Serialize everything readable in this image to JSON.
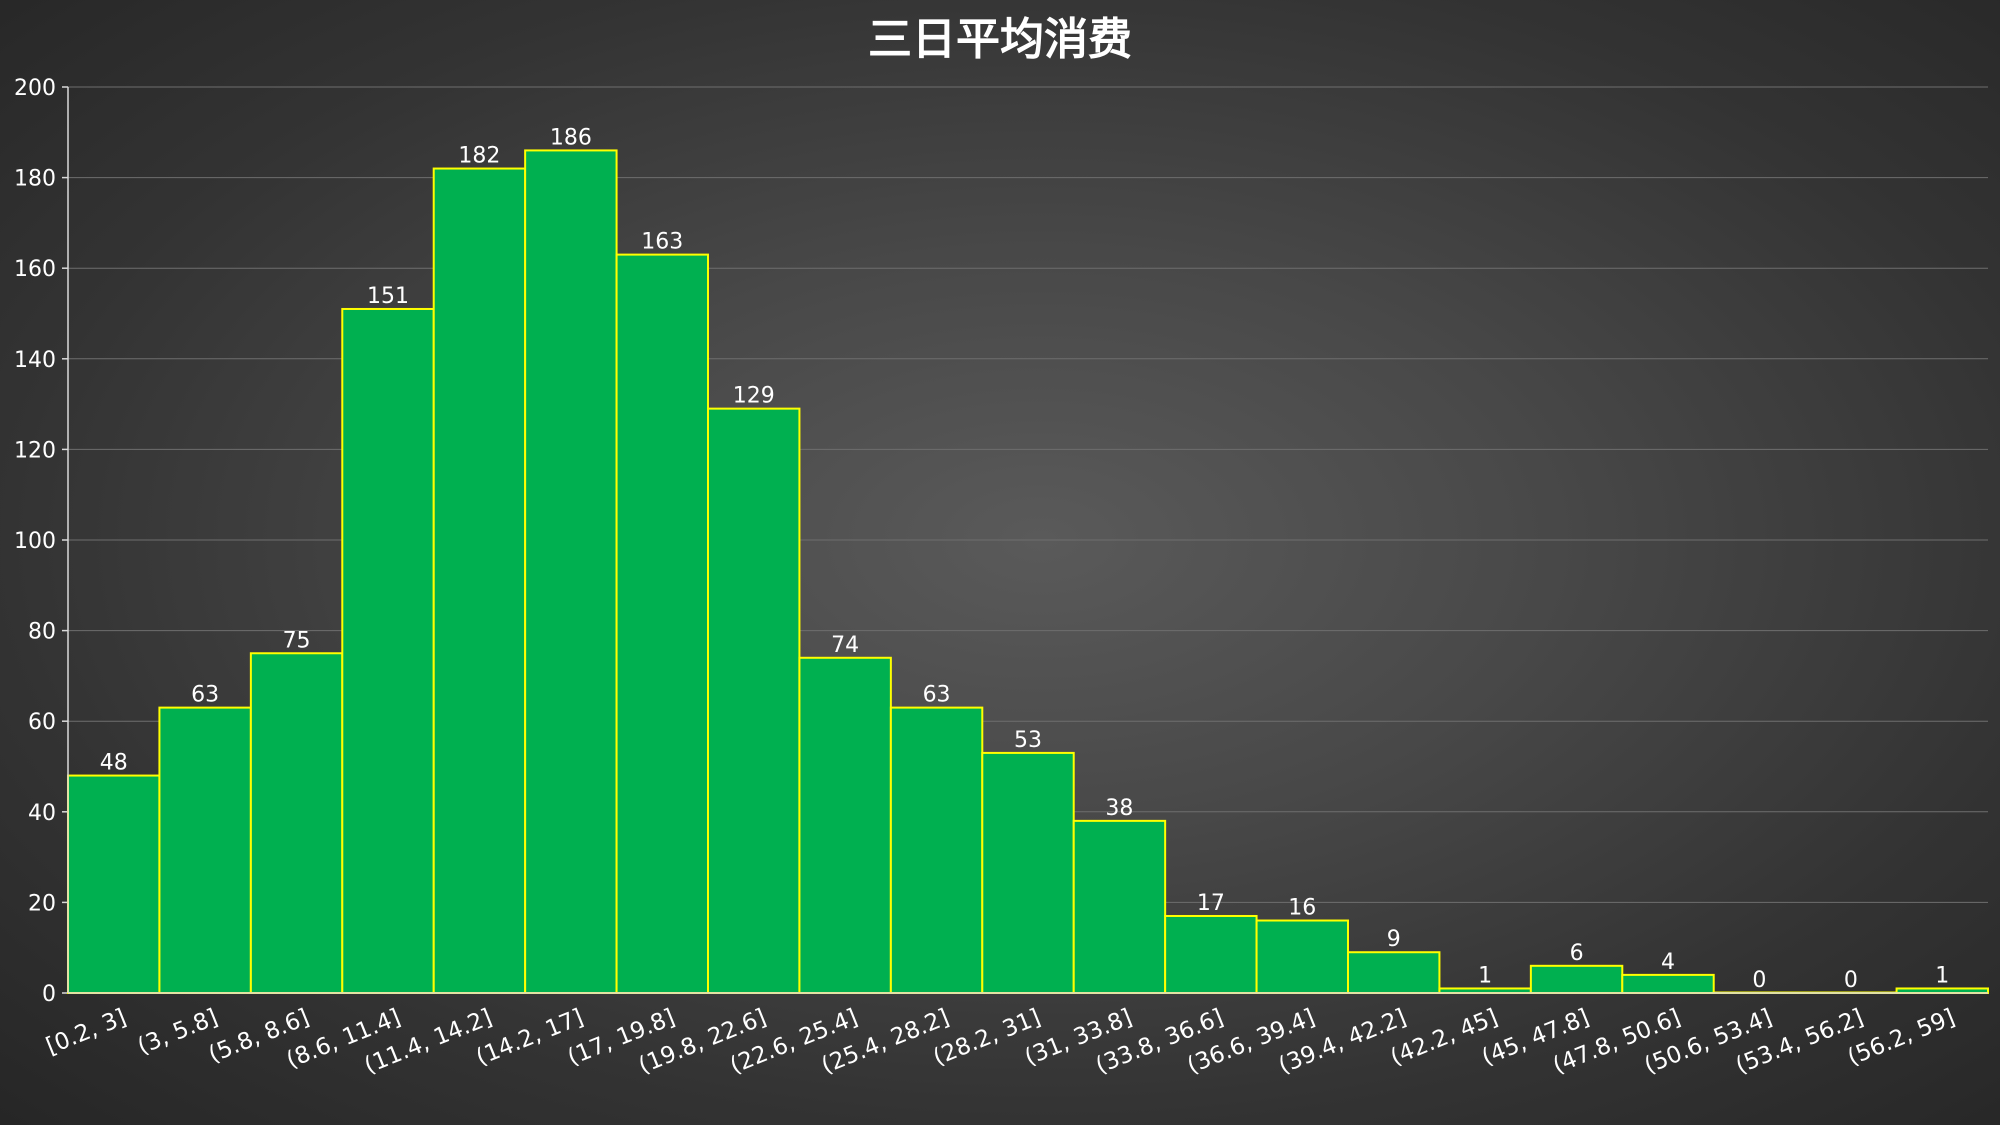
{
  "chart_data": {
    "type": "bar",
    "title": "三日平均消费",
    "xlabel": "",
    "ylabel": "",
    "ylim": [
      0,
      200
    ],
    "yticks": [
      0,
      20,
      40,
      60,
      80,
      100,
      120,
      140,
      160,
      180,
      200
    ],
    "grid": true,
    "legend": "none",
    "categories": [
      "[0.2, 3]",
      "(3, 5.8]",
      "(5.8, 8.6]",
      "(8.6, 11.4]",
      "(11.4, 14.2]",
      "(14.2, 17]",
      "(17, 19.8]",
      "(19.8, 22.6]",
      "(22.6, 25.4]",
      "(25.4, 28.2]",
      "(28.2, 31]",
      "(31, 33.8]",
      "(33.8, 36.6]",
      "(36.6, 39.4]",
      "(39.4, 42.2]",
      "(42.2, 45]",
      "(45, 47.8]",
      "(47.8, 50.6]",
      "(50.6, 53.4]",
      "(53.4, 56.2]",
      "(56.2, 59]"
    ],
    "values": [
      48,
      63,
      75,
      151,
      182,
      186,
      163,
      129,
      74,
      63,
      53,
      38,
      17,
      16,
      9,
      1,
      6,
      4,
      0,
      0,
      1
    ],
    "colors": {
      "bar_fill": "#00b050",
      "bar_edge": "#ffff00",
      "text": "#ffffff"
    }
  }
}
